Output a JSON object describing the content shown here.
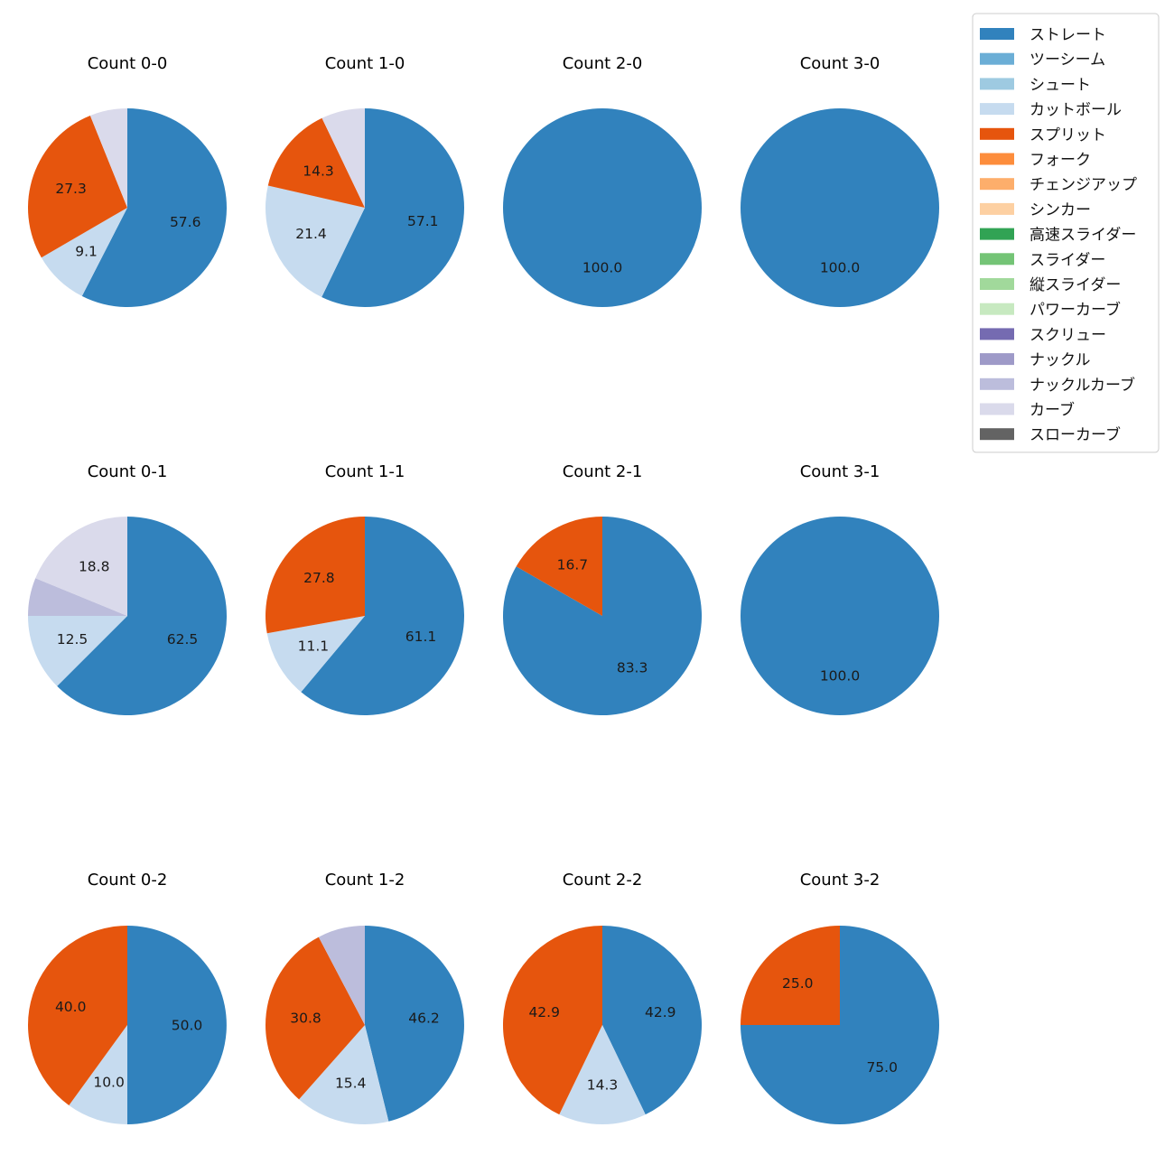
{
  "chart_data": {
    "type": "pie",
    "legend": {
      "placement": "top-right",
      "entries": [
        {
          "name": "ストレート",
          "color": "#3182bd"
        },
        {
          "name": "ツーシーム",
          "color": "#6baed6"
        },
        {
          "name": "シュート",
          "color": "#9ecae1"
        },
        {
          "name": "カットボール",
          "color": "#c6dbef"
        },
        {
          "name": "スプリット",
          "color": "#e6550d"
        },
        {
          "name": "フォーク",
          "color": "#fd8d3c"
        },
        {
          "name": "チェンジアップ",
          "color": "#fdae6b"
        },
        {
          "name": "シンカー",
          "color": "#fdd0a2"
        },
        {
          "name": "高速スライダー",
          "color": "#31a354"
        },
        {
          "name": "スライダー",
          "color": "#74c476"
        },
        {
          "name": "縦スライダー",
          "color": "#a1d99b"
        },
        {
          "name": "パワーカーブ",
          "color": "#c7e9c0"
        },
        {
          "name": "スクリュー",
          "color": "#756bb1"
        },
        {
          "name": "ナックル",
          "color": "#9e9ac8"
        },
        {
          "name": "ナックルカーブ",
          "color": "#bcbddc"
        },
        {
          "name": "カーブ",
          "color": "#dadaeb"
        },
        {
          "name": "スローカーブ",
          "color": "#636363"
        }
      ]
    },
    "pies": [
      {
        "title": "Count 0-0",
        "slices": [
          {
            "pitch": "ストレート",
            "value": 57.6,
            "label": "57.6"
          },
          {
            "pitch": "カットボール",
            "value": 9.1,
            "label": "9.1"
          },
          {
            "pitch": "スプリット",
            "value": 27.3,
            "label": "27.3"
          },
          {
            "pitch": "カーブ",
            "value": 6.1,
            "label": ""
          }
        ]
      },
      {
        "title": "Count 1-0",
        "slices": [
          {
            "pitch": "ストレート",
            "value": 57.1,
            "label": "57.1"
          },
          {
            "pitch": "カットボール",
            "value": 21.4,
            "label": "21.4"
          },
          {
            "pitch": "スプリット",
            "value": 14.3,
            "label": "14.3"
          },
          {
            "pitch": "カーブ",
            "value": 7.1,
            "label": ""
          }
        ]
      },
      {
        "title": "Count 2-0",
        "slices": [
          {
            "pitch": "ストレート",
            "value": 100.0,
            "label": "100.0"
          }
        ]
      },
      {
        "title": "Count 3-0",
        "slices": [
          {
            "pitch": "ストレート",
            "value": 100.0,
            "label": "100.0"
          }
        ]
      },
      {
        "title": "Count 0-1",
        "slices": [
          {
            "pitch": "ストレート",
            "value": 62.5,
            "label": "62.5"
          },
          {
            "pitch": "カットボール",
            "value": 12.5,
            "label": "12.5"
          },
          {
            "pitch": "ナックルカーブ",
            "value": 6.2,
            "label": ""
          },
          {
            "pitch": "カーブ",
            "value": 18.8,
            "label": "18.8"
          }
        ]
      },
      {
        "title": "Count 1-1",
        "slices": [
          {
            "pitch": "ストレート",
            "value": 61.1,
            "label": "61.1"
          },
          {
            "pitch": "カットボール",
            "value": 11.1,
            "label": "11.1"
          },
          {
            "pitch": "スプリット",
            "value": 27.8,
            "label": "27.8"
          }
        ]
      },
      {
        "title": "Count 2-1",
        "slices": [
          {
            "pitch": "ストレート",
            "value": 83.3,
            "label": "83.3"
          },
          {
            "pitch": "スプリット",
            "value": 16.7,
            "label": "16.7"
          }
        ]
      },
      {
        "title": "Count 3-1",
        "slices": [
          {
            "pitch": "ストレート",
            "value": 100.0,
            "label": "100.0"
          }
        ]
      },
      {
        "title": "Count 0-2",
        "slices": [
          {
            "pitch": "ストレート",
            "value": 50.0,
            "label": "50.0"
          },
          {
            "pitch": "カットボール",
            "value": 10.0,
            "label": "10.0"
          },
          {
            "pitch": "スプリット",
            "value": 40.0,
            "label": "40.0"
          }
        ]
      },
      {
        "title": "Count 1-2",
        "slices": [
          {
            "pitch": "ストレート",
            "value": 46.2,
            "label": "46.2"
          },
          {
            "pitch": "カットボール",
            "value": 15.4,
            "label": "15.4"
          },
          {
            "pitch": "スプリット",
            "value": 30.8,
            "label": "30.8"
          },
          {
            "pitch": "ナックルカーブ",
            "value": 7.7,
            "label": ""
          }
        ]
      },
      {
        "title": "Count 2-2",
        "slices": [
          {
            "pitch": "ストレート",
            "value": 42.9,
            "label": "42.9"
          },
          {
            "pitch": "カットボール",
            "value": 14.3,
            "label": "14.3"
          },
          {
            "pitch": "スプリット",
            "value": 42.9,
            "label": "42.9"
          }
        ]
      },
      {
        "title": "Count 3-2",
        "slices": [
          {
            "pitch": "ストレート",
            "value": 75.0,
            "label": "75.0"
          },
          {
            "pitch": "スプリット",
            "value": 25.0,
            "label": "25.0"
          }
        ]
      }
    ]
  }
}
